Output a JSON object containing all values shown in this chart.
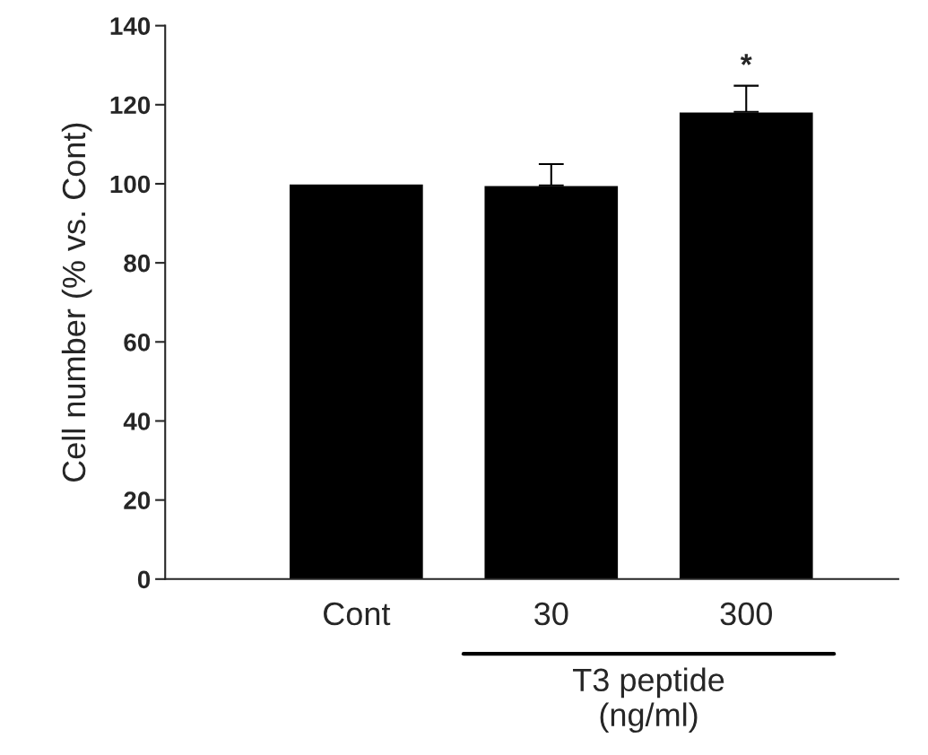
{
  "chart_data": {
    "type": "bar",
    "ylabel": "Cell number (% vs. Cont)",
    "xlabel": "T3 peptide\n(ng/ml)",
    "categories": [
      "Cont",
      "30",
      "300"
    ],
    "values": [
      100,
      99.6,
      118.2
    ],
    "errors": [
      null,
      [
        99.6,
        105
      ],
      [
        118.2,
        124.8
      ]
    ],
    "color": "#000000",
    "ylim": [
      0,
      140
    ],
    "yticks": [
      0,
      20,
      40,
      60,
      80,
      100,
      120,
      140
    ],
    "annotations": [
      {
        "text": "*",
        "x": "300",
        "y": 124.8
      }
    ],
    "grid": false,
    "legend": false
  }
}
